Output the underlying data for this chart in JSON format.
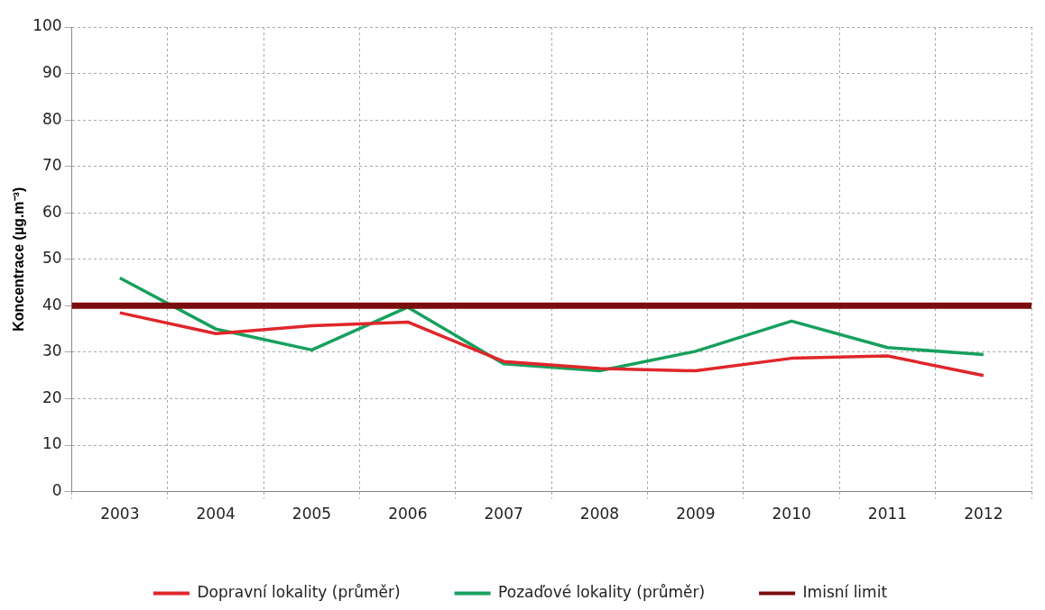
{
  "chart_data": {
    "type": "line",
    "ylabel": "Koncentrace (µg.m⁻³)",
    "categories": [
      "2003",
      "2004",
      "2005",
      "2006",
      "2007",
      "2008",
      "2009",
      "2010",
      "2011",
      "2012"
    ],
    "series": [
      {
        "name": "Dopravní lokality (průměr)",
        "color": "#e0262b",
        "values": [
          38.5,
          34,
          35.7,
          36.5,
          28,
          26.5,
          26,
          28.7,
          29.2,
          25
        ]
      },
      {
        "name": "Pozaďové lokality (průměr)",
        "color": "#17a05d",
        "values": [
          46,
          35,
          30.5,
          39.7,
          27.5,
          26,
          30.2,
          36.7,
          31,
          29.5
        ]
      }
    ],
    "ref_lines": [
      {
        "axis": "y",
        "value": 40,
        "label": "Imisní limit",
        "color": "#7a0d0d"
      }
    ],
    "ylim": [
      0,
      100
    ],
    "yticks": [
      0,
      10,
      20,
      30,
      40,
      50,
      60,
      70,
      80,
      90,
      100
    ],
    "grid": true,
    "legend": "bottom",
    "marker": "none",
    "line_style": "solid"
  }
}
